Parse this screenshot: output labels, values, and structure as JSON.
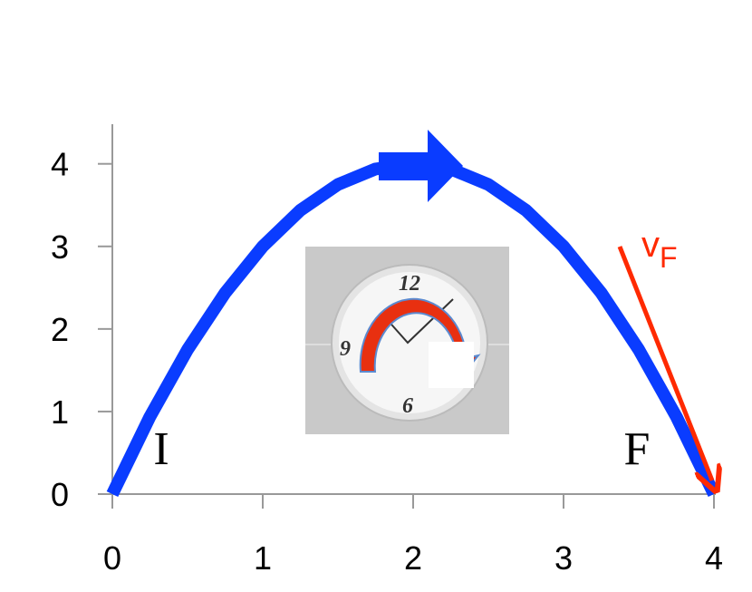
{
  "chart_data": {
    "type": "line",
    "x": [
      0,
      0.25,
      0.5,
      0.75,
      1,
      1.25,
      1.5,
      1.75,
      2,
      2.25,
      2.5,
      2.75,
      3,
      3.25,
      3.5,
      3.75,
      4
    ],
    "values": [
      0,
      0.9375,
      1.75,
      2.4375,
      3,
      3.4375,
      3.75,
      3.9375,
      4,
      3.9375,
      3.75,
      3.4375,
      3,
      2.4375,
      1.75,
      0.9375,
      0
    ],
    "color": "#0a3cff",
    "xlim": [
      0,
      4
    ],
    "xticks": [
      0,
      1,
      2,
      3,
      4
    ],
    "ylim": [
      0,
      4.48
    ],
    "yticks": [
      0,
      1,
      2,
      3,
      4
    ],
    "start_label": "I",
    "end_label": "F",
    "velocity_label": {
      "symbol": "v",
      "subscript": "F",
      "color": "#ff2a00"
    },
    "clock_labels": [
      "12",
      "9",
      "6"
    ]
  }
}
